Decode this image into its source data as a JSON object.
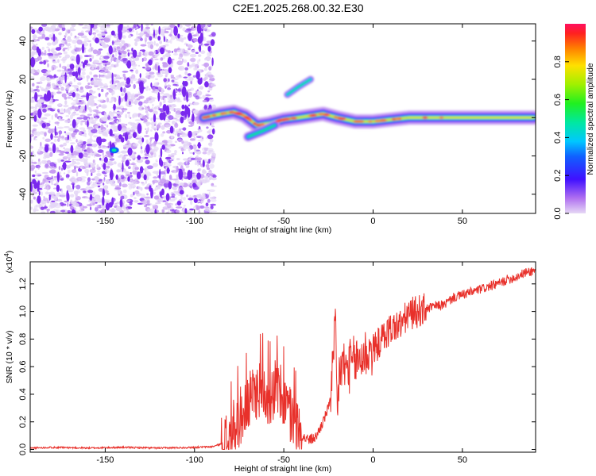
{
  "figure": {
    "title": "C2E1.2025.268.00.32.E30",
    "colors": {
      "snr_line": "#e8302a",
      "spectrogram_noise": "#8a3cf0",
      "axis": "#000000"
    }
  },
  "chart_data": [
    {
      "type": "heatmap",
      "xlabel": "Height of straight line (km)",
      "ylabel": "Frequency (Hz)",
      "xlim": [
        -192,
        91
      ],
      "ylim": [
        -50,
        49
      ],
      "xticks": [
        -150,
        -100,
        -50,
        0,
        50
      ],
      "yticks": [
        -40,
        -20,
        0,
        20,
        40
      ],
      "colormap": "rainbow",
      "colorbar": {
        "label": "Normalized spectral amplitude",
        "range": [
          0,
          1
        ],
        "ticks": [
          0.0,
          0.2,
          0.4,
          0.6,
          0.8
        ]
      },
      "features": [
        {
          "name": "noise",
          "x_range": [
            -192,
            -89
          ],
          "y_range": [
            -50,
            49
          ],
          "amplitude": 0.1
        },
        {
          "name": "noise_spot",
          "x": -145,
          "y": -17,
          "amplitude": 0.35
        },
        {
          "name": "main_trace",
          "points": [
            [
              -95,
              0
            ],
            [
              -85,
              2
            ],
            [
              -78,
              3
            ],
            [
              -72,
              1
            ],
            [
              -65,
              -4
            ],
            [
              -58,
              -3
            ],
            [
              -50,
              -1
            ],
            [
              -42,
              0
            ],
            [
              -35,
              1
            ],
            [
              -28,
              2
            ],
            [
              -20,
              0
            ],
            [
              -10,
              -2
            ],
            [
              0,
              -2
            ],
            [
              10,
              -1
            ],
            [
              20,
              0
            ],
            [
              40,
              0
            ],
            [
              60,
              0
            ],
            [
              90,
              0
            ]
          ],
          "amplitude": 0.8
        },
        {
          "name": "branch_lower",
          "points": [
            [
              -70,
              -10
            ],
            [
              -62,
              -7
            ],
            [
              -55,
              -4
            ]
          ],
          "amplitude": 0.55
        },
        {
          "name": "branch_upper",
          "points": [
            [
              -48,
              12
            ],
            [
              -42,
              16
            ],
            [
              -35,
              20
            ]
          ],
          "amplitude": 0.45
        }
      ]
    },
    {
      "type": "line",
      "xlabel": "Height of straight line (km)",
      "ylabel": "SNR (10 * v/v)",
      "yscale_label": "(x10",
      "yscale_exp": "4",
      "xlim": [
        -192,
        91
      ],
      "ylim": [
        -0.02,
        1.36
      ],
      "xticks": [
        -150,
        -100,
        -50,
        0,
        50
      ],
      "yticks": [
        "0.0",
        "0.2",
        "0.4",
        "0.6",
        "0.8",
        "1.0",
        "1.2"
      ],
      "series": [
        {
          "x": [
            -192,
            -180,
            -160,
            -140,
            -120,
            -100,
            -90,
            -85,
            -80,
            -77,
            -74,
            -70,
            -66,
            -62,
            -58,
            -55,
            -52,
            -48,
            -45,
            -42,
            -40,
            -38,
            -35,
            -32,
            -28,
            -25,
            -23,
            -21,
            -20,
            -19,
            -17,
            -15,
            -12,
            -8,
            -4,
            0,
            5,
            10,
            15,
            20,
            25,
            30,
            35,
            40,
            45,
            50,
            55,
            60,
            65,
            70,
            75,
            80,
            85,
            91
          ],
          "y": [
            0.01,
            0.015,
            0.01,
            0.015,
            0.01,
            0.015,
            0.02,
            0.04,
            0.08,
            0.18,
            0.25,
            0.32,
            0.42,
            0.45,
            0.38,
            0.45,
            0.4,
            0.3,
            0.22,
            0.14,
            0.1,
            0.08,
            0.07,
            0.09,
            0.2,
            0.3,
            0.5,
            0.88,
            0.2,
            0.55,
            0.62,
            0.58,
            0.62,
            0.65,
            0.7,
            0.72,
            0.8,
            0.88,
            0.9,
            0.98,
            1.0,
            1.02,
            1.04,
            1.05,
            1.1,
            1.12,
            1.14,
            1.16,
            1.18,
            1.2,
            1.23,
            1.25,
            1.28,
            1.3
          ]
        }
      ]
    }
  ]
}
